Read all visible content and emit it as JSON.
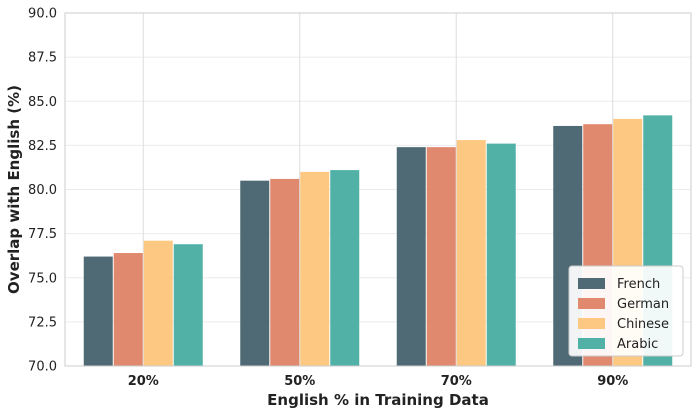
{
  "chart_data": {
    "type": "bar",
    "xlabel": "English % in Training Data",
    "ylabel": "Overlap with English (%)",
    "categories": [
      "20%",
      "50%",
      "70%",
      "90%"
    ],
    "ylim": [
      70.0,
      90.0
    ],
    "yticks": [
      "70.0",
      "72.5",
      "75.0",
      "77.5",
      "80.0",
      "82.5",
      "85.0",
      "87.5",
      "90.0"
    ],
    "grid": true,
    "legend_position": "lower-right",
    "series": [
      {
        "name": "French",
        "color": "#4f6a74",
        "values": [
          76.2,
          80.5,
          82.4,
          83.6
        ]
      },
      {
        "name": "German",
        "color": "#e0896e",
        "values": [
          76.4,
          80.6,
          82.4,
          83.7
        ]
      },
      {
        "name": "Chinese",
        "color": "#fdc882",
        "values": [
          77.1,
          81.0,
          82.8,
          84.0
        ]
      },
      {
        "name": "Arabic",
        "color": "#52b1a6",
        "values": [
          76.9,
          81.1,
          82.6,
          84.2
        ]
      }
    ]
  }
}
